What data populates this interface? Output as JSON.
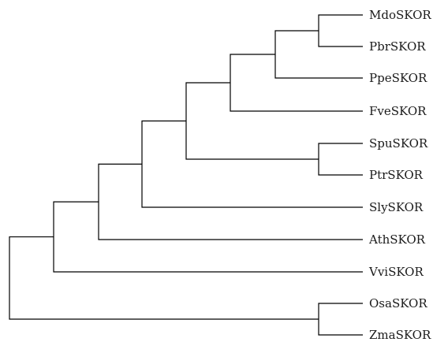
{
  "tree": {
    "leaves": [
      {
        "id": "mdo",
        "label": "MdoSKOR"
      },
      {
        "id": "pbr",
        "label": "PbrSKOR"
      },
      {
        "id": "ppe",
        "label": "PpeSKOR"
      },
      {
        "id": "fve",
        "label": "FveSKOR"
      },
      {
        "id": "spu",
        "label": "SpuSKOR"
      },
      {
        "id": "ptr",
        "label": "PtrSKOR"
      },
      {
        "id": "sly",
        "label": "SlySKOR"
      },
      {
        "id": "ath",
        "label": "AthSKOR"
      },
      {
        "id": "vvi",
        "label": "VviSKOR"
      },
      {
        "id": "osa",
        "label": "OsaSKOR"
      },
      {
        "id": "zma",
        "label": "ZmaSKOR"
      }
    ],
    "topology": "((((((MdoSKOR,PbrSKOR),PpeSKOR),FveSKOR),(SpuSKOR,PtrSKOR)),SlySKOR),AthSKOR),VviSKOR),(OsaSKOR,ZmaSKOR));"
  }
}
